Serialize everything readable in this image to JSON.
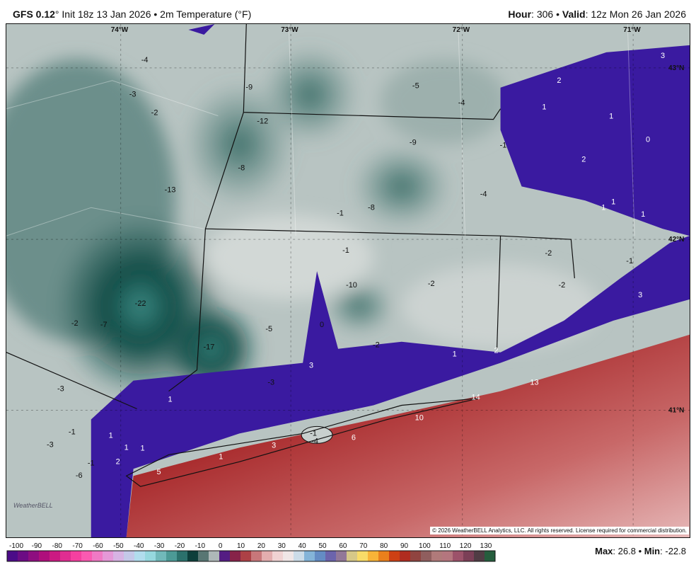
{
  "header": {
    "model": "GFS 0.12",
    "model_suffix": "° Init 18z 13 Jan 2026 • 2m Temperature (°F)",
    "hour_label": "Hour",
    "hour": ": 306 • ",
    "valid_label": "Valid",
    "valid": ": 12z Mon 26 Jan 2026"
  },
  "map": {
    "lon_labels": [
      "74°W",
      "73°W",
      "72°W",
      "71°W"
    ],
    "lat_labels": [
      "43°N",
      "42°N",
      "41°N"
    ],
    "temperature_labels": [
      "-4",
      "-3",
      "-2",
      "-9",
      "-5",
      "-4",
      "-12",
      "-9",
      "-8",
      "-13",
      "-1",
      "-8",
      "-4",
      "-1",
      "-1",
      "-10",
      "-2",
      "-22",
      "-2",
      "-7",
      "-5",
      "0",
      "-17",
      "-2",
      "1",
      "2",
      "3",
      "-3",
      "1",
      "-3",
      "-1",
      "-3",
      "1",
      "1",
      "1",
      "-1",
      "2",
      "-6",
      "5",
      "1",
      "3",
      "-1",
      "-4",
      "6",
      "10",
      "14",
      "13",
      "2",
      "1",
      "1",
      "0",
      "2",
      "1",
      "1",
      "1",
      "3",
      "-2",
      "-2",
      "-1",
      "3"
    ],
    "copyright": "© 2026 WeatherBELL Analytics, LLC. All rights reserved. License required for commercial distribution.",
    "logo_text": "WeatherBELL"
  },
  "colorbar": {
    "ticks": [
      "-100",
      "-90",
      "-80",
      "-70",
      "-60",
      "-50",
      "-40",
      "-30",
      "-20",
      "-10",
      "0",
      "10",
      "20",
      "30",
      "40",
      "50",
      "60",
      "70",
      "80",
      "90",
      "100",
      "110",
      "120",
      "130"
    ],
    "min": -100,
    "max": 130,
    "step": 5
  },
  "stats": {
    "max_label": "Max",
    "max": "26.8",
    "min_label": "Min",
    "min": "-22.8"
  },
  "colors": {
    "cold_teal": "#0e4a44",
    "near_zero_gray": "#c4ccca",
    "freezing_purple": "#3a1aa0",
    "warm_red": "#a0262c",
    "ocean_pink": "#d89a9a"
  }
}
